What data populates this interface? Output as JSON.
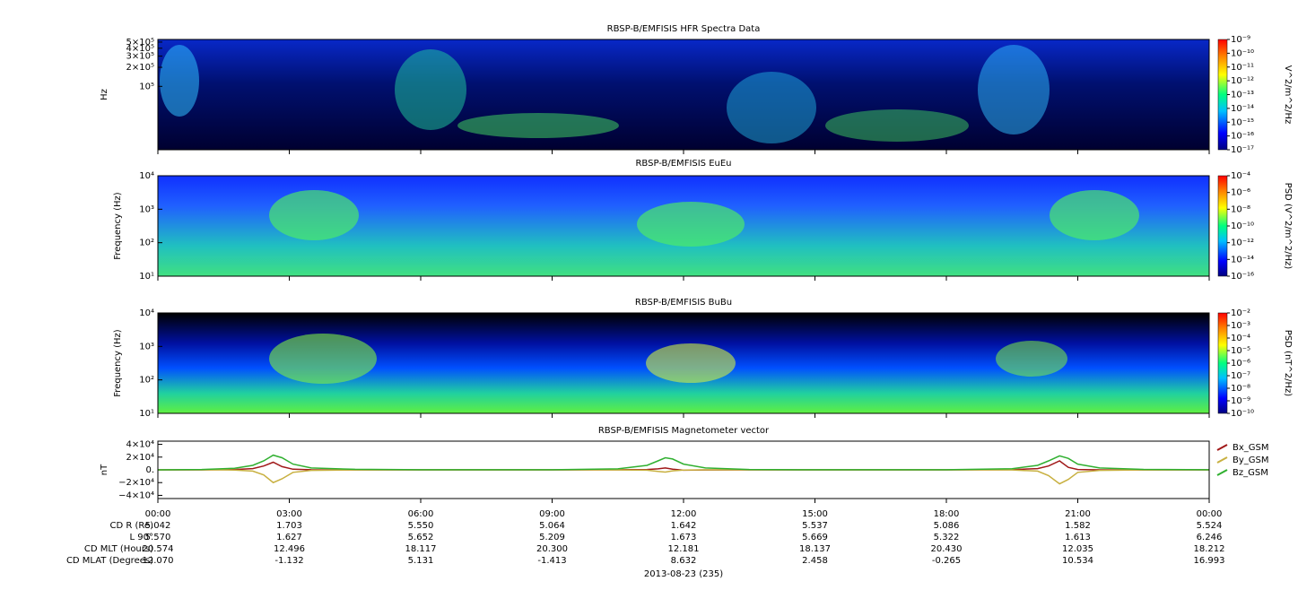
{
  "chart_data": [
    {
      "type": "spectrogram",
      "title": "RBSP-B/EMFISIS  HFR Spectra Data",
      "ylabel": "Hz",
      "log": true,
      "ylim": [
        10000,
        550000
      ],
      "yticks": [
        {
          "value": 500000,
          "label": "5×10⁵"
        },
        {
          "value": 400000,
          "label": "4×10⁵"
        },
        {
          "value": 300000,
          "label": "3×10⁵"
        },
        {
          "value": 200000,
          "label": "2×10⁵"
        },
        {
          "value": 100000,
          "label": "10⁵"
        }
      ],
      "colorbar": {
        "label": "V^2/m^2/Hz",
        "clim": [
          1e-17,
          1e-09
        ],
        "ticks": [
          {
            "value": 1e-09,
            "label": "10⁻⁹"
          },
          {
            "value": 1e-10,
            "label": "10⁻¹⁰"
          },
          {
            "value": 1e-11,
            "label": "10⁻¹¹"
          },
          {
            "value": 1e-12,
            "label": "10⁻¹²"
          },
          {
            "value": 1e-13,
            "label": "10⁻¹³"
          },
          {
            "value": 1e-14,
            "label": "10⁻¹⁴"
          },
          {
            "value": 1e-15,
            "label": "10⁻¹⁵"
          },
          {
            "value": 1e-16,
            "label": "10⁻¹⁶"
          },
          {
            "value": 1e-17,
            "label": "10⁻¹⁷"
          }
        ]
      }
    },
    {
      "type": "spectrogram",
      "title": "RBSP-B/EMFISIS  EuEu",
      "ylabel": "Frequency (Hz)",
      "log": true,
      "ylim": [
        10,
        10000
      ],
      "yticks": [
        {
          "value": 10000,
          "label": "10⁴"
        },
        {
          "value": 1000,
          "label": "10³"
        },
        {
          "value": 100,
          "label": "10²"
        },
        {
          "value": 10,
          "label": "10¹"
        }
      ],
      "colorbar": {
        "label": "PSD (V^2/m^2/Hz)",
        "clim": [
          1e-16,
          0.0001
        ],
        "ticks": [
          {
            "value": 0.0001,
            "label": "10⁻⁴"
          },
          {
            "value": 1e-06,
            "label": "10⁻⁶"
          },
          {
            "value": 1e-08,
            "label": "10⁻⁸"
          },
          {
            "value": 1e-10,
            "label": "10⁻¹⁰"
          },
          {
            "value": 1e-12,
            "label": "10⁻¹²"
          },
          {
            "value": 1e-14,
            "label": "10⁻¹⁴"
          },
          {
            "value": 1e-16,
            "label": "10⁻¹⁶"
          }
        ]
      }
    },
    {
      "type": "spectrogram",
      "title": "RBSP-B/EMFISIS  BuBu",
      "ylabel": "Frequency (Hz)",
      "log": true,
      "ylim": [
        10,
        10000
      ],
      "yticks": [
        {
          "value": 10000,
          "label": "10⁴"
        },
        {
          "value": 1000,
          "label": "10³"
        },
        {
          "value": 100,
          "label": "10²"
        },
        {
          "value": 10,
          "label": "10¹"
        }
      ],
      "colorbar": {
        "label": "PSD (nT^2/Hz)",
        "clim": [
          1e-10,
          0.01
        ],
        "ticks": [
          {
            "value": 0.01,
            "label": "10⁻²"
          },
          {
            "value": 0.001,
            "label": "10⁻³"
          },
          {
            "value": 0.0001,
            "label": "10⁻⁴"
          },
          {
            "value": 1e-05,
            "label": "10⁻⁵"
          },
          {
            "value": 1e-06,
            "label": "10⁻⁶"
          },
          {
            "value": 1e-07,
            "label": "10⁻⁷"
          },
          {
            "value": 1e-08,
            "label": "10⁻⁸"
          },
          {
            "value": 1e-09,
            "label": "10⁻⁹"
          },
          {
            "value": 1e-10,
            "label": "10⁻¹⁰"
          }
        ]
      }
    },
    {
      "type": "line",
      "title": "RBSP-B/EMFISIS  Magnetometer vector",
      "ylabel": "nT",
      "ylim": [
        -45000,
        45000
      ],
      "yticks": [
        {
          "value": 40000,
          "label": "4×10⁴"
        },
        {
          "value": 20000,
          "label": "2×10⁴"
        },
        {
          "value": 0,
          "label": "0."
        },
        {
          "value": -20000,
          "label": "−2×10⁴"
        },
        {
          "value": -40000,
          "label": "−4×10⁴"
        }
      ],
      "xticks": [
        "00:00",
        "03:00",
        "06:00",
        "09:00",
        "12:00",
        "15:00",
        "18:00",
        "21:00",
        "00:00"
      ],
      "x": [
        "00:00",
        "01:00",
        "01:45",
        "02:10",
        "02:25",
        "02:38",
        "02:50",
        "03:05",
        "03:30",
        "04:30",
        "06:00",
        "09:00",
        "10:30",
        "11:10",
        "11:25",
        "11:35",
        "11:45",
        "12:00",
        "12:30",
        "13:30",
        "15:00",
        "18:00",
        "19:30",
        "20:05",
        "20:20",
        "20:35",
        "20:47",
        "21:00",
        "21:30",
        "22:30",
        "00:00"
      ],
      "series": [
        {
          "name": "Bx_GSM",
          "color": "#a01818",
          "values": [
            0,
            0,
            500,
            2000,
            6000,
            12000,
            5000,
            1000,
            200,
            0,
            0,
            0,
            100,
            500,
            1500,
            3000,
            1000,
            -500,
            -200,
            0,
            0,
            0,
            300,
            2000,
            6000,
            14000,
            4000,
            500,
            0,
            0,
            0
          ]
        },
        {
          "name": "By_GSM",
          "color": "#c8b040",
          "values": [
            0,
            0,
            -300,
            -2000,
            -8000,
            -20000,
            -14000,
            -4000,
            -800,
            -100,
            0,
            0,
            -100,
            -500,
            -2500,
            -3500,
            -1500,
            -300,
            0,
            0,
            0,
            0,
            -200,
            -2000,
            -9000,
            -22000,
            -15000,
            -4000,
            -800,
            -100,
            0
          ]
        },
        {
          "name": "Bz_GSM",
          "color": "#30b030",
          "values": [
            0,
            500,
            2500,
            7000,
            14000,
            23000,
            19000,
            9000,
            3000,
            800,
            200,
            100,
            1500,
            7000,
            14000,
            19000,
            17000,
            9000,
            3000,
            600,
            200,
            100,
            1800,
            7000,
            14000,
            22000,
            18000,
            9000,
            3000,
            700,
            100
          ]
        }
      ]
    }
  ],
  "ephemeris": {
    "labels": [
      "CD R (Re)",
      "L 90°",
      "CD MLT (Hours)",
      "CD MLAT (Degrees)"
    ],
    "rows": [
      [
        "5.042",
        "1.703",
        "5.550",
        "5.064",
        "1.642",
        "5.537",
        "5.086",
        "1.582",
        "5.524"
      ],
      [
        "5.570",
        "1.627",
        "5.652",
        "5.209",
        "1.673",
        "5.669",
        "5.322",
        "1.613",
        "6.246"
      ],
      [
        "20.574",
        "12.496",
        "18.117",
        "20.300",
        "12.181",
        "18.137",
        "20.430",
        "12.035",
        "18.212"
      ],
      [
        "12.070",
        "-1.132",
        "5.131",
        "-1.413",
        "8.632",
        "2.458",
        "-0.265",
        "10.534",
        "16.993"
      ]
    ],
    "date": "2013-08-23 (235)"
  }
}
